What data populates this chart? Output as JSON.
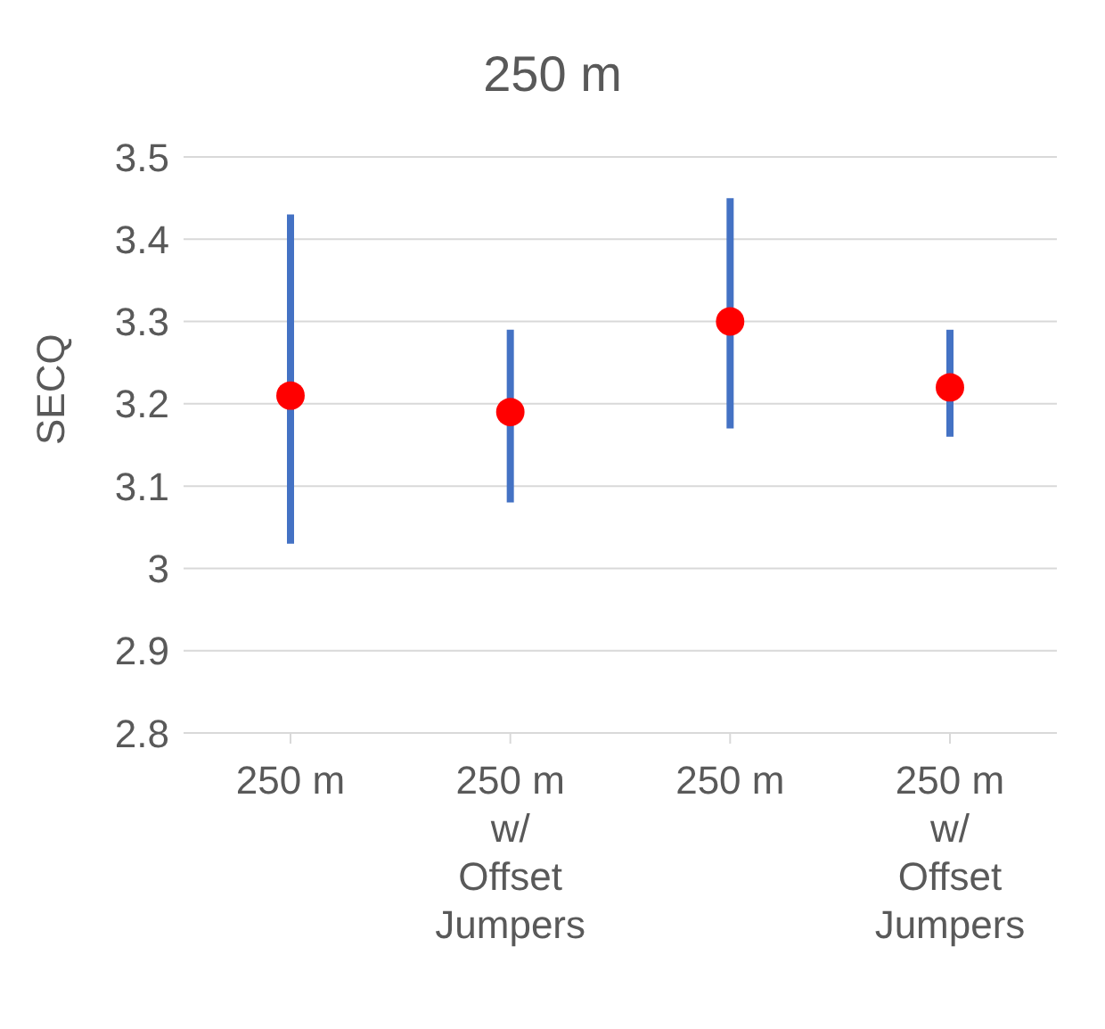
{
  "chart_data": {
    "type": "scatter",
    "title": "250 m",
    "ylabel": "SECQ",
    "categories": [
      "250 m",
      "250 m w/ Offset Jumpers",
      "250 m",
      "250 m w/ Offset Jumpers"
    ],
    "values": [
      3.21,
      3.19,
      3.3,
      3.22
    ],
    "errors": [
      [
        3.03,
        3.43
      ],
      [
        3.08,
        3.29
      ],
      [
        3.17,
        3.45
      ],
      [
        3.16,
        3.29
      ]
    ],
    "color": "#ff0000",
    "marker": "circle",
    "ylim": [
      2.8,
      3.5
    ],
    "yticks": [
      {
        "value": 2.8,
        "label": "2.8"
      },
      {
        "value": 2.9,
        "label": "2.9"
      },
      3,
      {
        "value": 3.1,
        "label": "3.1"
      },
      {
        "value": 3.2,
        "label": "3.2"
      },
      {
        "value": 3.3,
        "label": "3.3"
      },
      {
        "value": 3.4,
        "label": "3.4"
      },
      {
        "value": 3.5,
        "label": "3.5"
      }
    ],
    "grid": "y"
  }
}
